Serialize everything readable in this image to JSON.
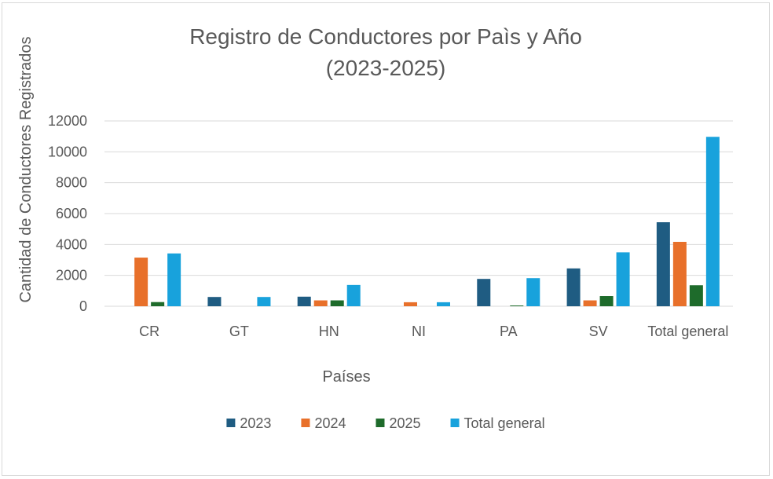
{
  "chart_data": {
    "type": "bar",
    "title_line1": "Registro de Conductores por Paìs y Año",
    "title_line2": "(2023-2025)",
    "xlabel": "Países",
    "ylabel": "Cantidad de Conductores Registrados",
    "categories": [
      "CR",
      "GT",
      "HN",
      "NI",
      "PA",
      "SV",
      "Total general"
    ],
    "series": [
      {
        "name": "2023",
        "color": "#1f5c82",
        "values": [
          0,
          600,
          620,
          0,
          1770,
          2450,
          5440
        ]
      },
      {
        "name": "2024",
        "color": "#e8702a",
        "values": [
          3150,
          0,
          380,
          260,
          0,
          380,
          4170
        ]
      },
      {
        "name": "2025",
        "color": "#1e6b2b",
        "values": [
          270,
          0,
          380,
          0,
          50,
          660,
          1360
        ]
      },
      {
        "name": "Total general",
        "color": "#18a2dc",
        "values": [
          3420,
          600,
          1380,
          260,
          1820,
          3490,
          10970
        ]
      }
    ],
    "ylim": [
      0,
      12000
    ],
    "yticks": [
      0,
      2000,
      4000,
      6000,
      8000,
      10000,
      12000
    ],
    "grid": true,
    "legend_position": "bottom"
  }
}
